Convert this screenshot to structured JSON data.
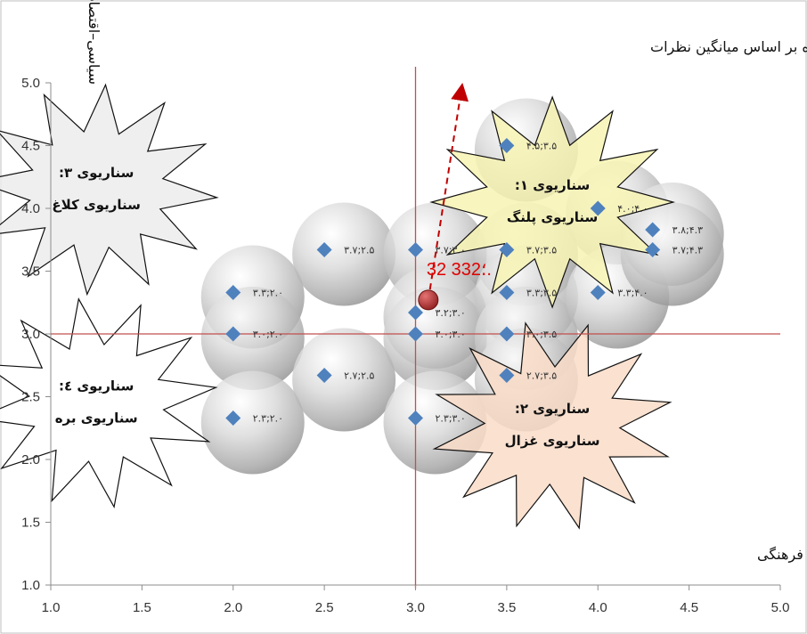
{
  "chart_data": {
    "type": "scatter",
    "title": "",
    "xlabel": "اجتماعی– فرهنگی",
    "ylabel": "سیاسی–اقتصادی",
    "xlim": [
      1.0,
      5.0
    ],
    "ylim": [
      1.0,
      5.0
    ],
    "x_ticks": [
      "1.0",
      "1.5",
      "2.0",
      "2.5",
      "3.0",
      "3.5",
      "4.0",
      "4.5",
      "5.0"
    ],
    "y_ticks": [
      "1.0",
      "1.5",
      "2.0",
      "2.5",
      "3.0",
      "3.5",
      "4.0",
      "4.5",
      "5.0"
    ],
    "grid": false,
    "reference_lines": {
      "x": 3.0,
      "y": 3.0,
      "color": "#c0504d"
    },
    "points": [
      {
        "x": 2.0,
        "y": 3.33,
        "label": "۳.۳;۲.۰"
      },
      {
        "x": 2.0,
        "y": 3.0,
        "label": "۳.۰;۲.۰"
      },
      {
        "x": 2.0,
        "y": 2.33,
        "label": "۲.۳;۲.۰"
      },
      {
        "x": 2.5,
        "y": 3.67,
        "label": "۳.۷;۲.۵"
      },
      {
        "x": 2.5,
        "y": 2.67,
        "label": "۲.۷;۲.۵"
      },
      {
        "x": 3.0,
        "y": 3.67,
        "label": "۳.۷;۳.۰"
      },
      {
        "x": 3.0,
        "y": 3.17,
        "label": "۳.۲;۳.۰"
      },
      {
        "x": 3.0,
        "y": 3.0,
        "label": "۳.۰;۳.۰"
      },
      {
        "x": 3.0,
        "y": 2.33,
        "label": "۲.۳;۳.۰"
      },
      {
        "x": 3.5,
        "y": 4.5,
        "label": "۴.۵;۳.۵"
      },
      {
        "x": 3.5,
        "y": 3.67,
        "label": "۳.۷;۳.۵"
      },
      {
        "x": 3.5,
        "y": 3.33,
        "label": "۳.۳;۳.۵"
      },
      {
        "x": 3.5,
        "y": 3.0,
        "label": "۳.۰;۳.۵"
      },
      {
        "x": 3.5,
        "y": 2.67,
        "label": "۲.۷;۳.۵"
      },
      {
        "x": 4.0,
        "y": 4.0,
        "label": "۴.۰;۴.۰"
      },
      {
        "x": 4.0,
        "y": 3.33,
        "label": "۳.۳;۴.۰"
      },
      {
        "x": 4.3,
        "y": 3.83,
        "label": "۳.۸;۴.۳"
      },
      {
        "x": 4.3,
        "y": 3.67,
        "label": "۳.۷;۴.۳"
      }
    ],
    "mean_point": {
      "x": 3.07,
      "y": 3.27,
      "label": "32 3؛32.",
      "color": "#c0392b"
    },
    "trend_arrow": {
      "from": [
        3.07,
        3.27
      ],
      "to": [
        3.25,
        4.93
      ],
      "color": "#c00000"
    },
    "annotation": "وضعیت محتمل آینده بر اساس میانگین نظرات",
    "scenarios": [
      {
        "title": "سناریوی ۱:",
        "subtitle": "سناریوی پلنگ",
        "fill": "#f7f3b4",
        "cx": 3.75,
        "cy": 4.05
      },
      {
        "title": "سناریوی ۲:",
        "subtitle": "سناریوی غزال",
        "fill": "#f9dcc8",
        "cx": 3.75,
        "cy": 2.27
      },
      {
        "title": "سناریوی ۳:",
        "subtitle": "سناریوی کلاغ",
        "fill": "#ececec",
        "cx": 1.25,
        "cy": 4.15
      },
      {
        "title": "سناریوی ٤:",
        "subtitle": "سناریوی بره",
        "fill": "#ffffff",
        "cx": 1.25,
        "cy": 2.45
      }
    ]
  }
}
